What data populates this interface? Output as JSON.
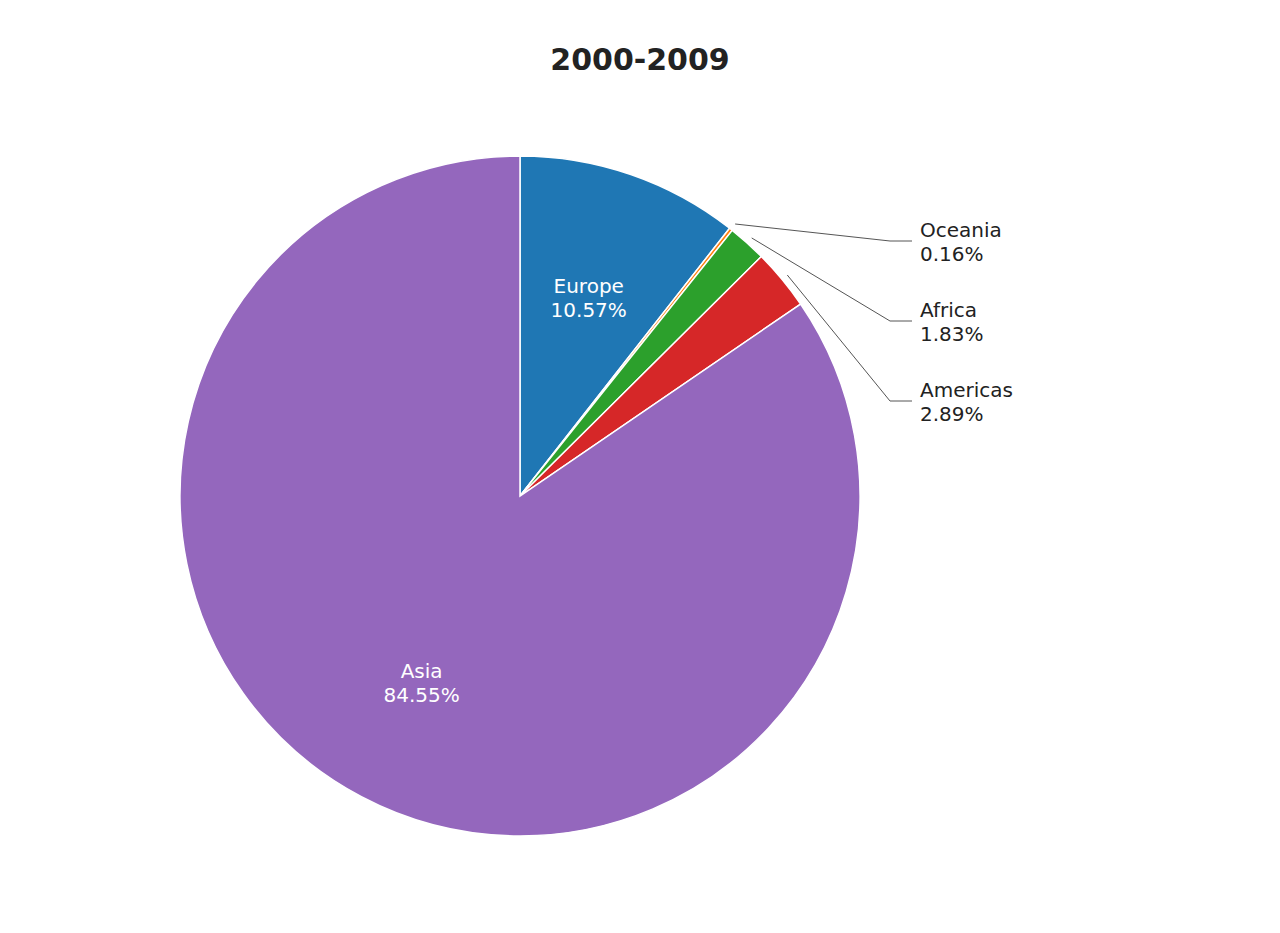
{
  "chart_data": {
    "type": "pie",
    "title": "2000-2009",
    "categories": [
      "Europe",
      "Oceania",
      "Africa",
      "Americas",
      "Asia"
    ],
    "values": [
      10.57,
      0.16,
      1.83,
      2.89,
      84.55
    ],
    "data_labels": true,
    "value_labels": [
      "10.57%",
      "0.16%",
      "1.83%",
      "2.89%",
      "84.55%"
    ]
  }
}
